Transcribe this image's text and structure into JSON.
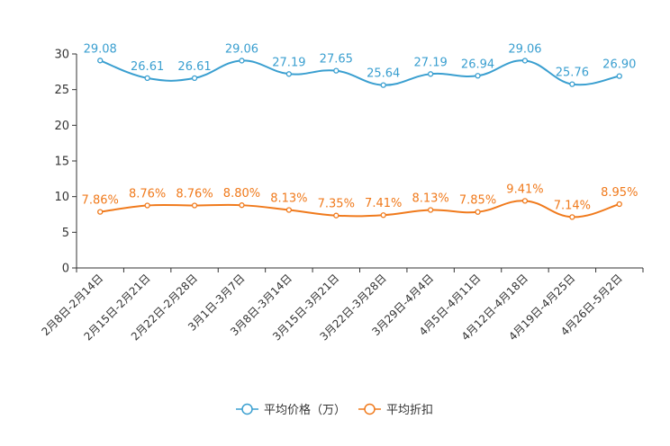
{
  "chart_data": {
    "type": "line",
    "title": "",
    "xlabel": "",
    "ylabel": "",
    "ylim": [
      0,
      30
    ],
    "yticks": [
      0,
      5,
      10,
      15,
      20,
      25,
      30
    ],
    "categories": [
      "2月8日-2月14日",
      "2月15日-2月21日",
      "2月22日-2月28日",
      "3月1日-3月7日",
      "3月8日-3月14日",
      "3月15日-3月21日",
      "3月22日-3月28日",
      "3月29日-4月4日",
      "4月5日-4月11日",
      "4月12日-4月18日",
      "4月19日-4月25日",
      "4月26日-5月2日"
    ],
    "series": [
      {
        "name": "平均价格（万）",
        "color": "#3a9fd0",
        "values": [
          29.08,
          26.61,
          26.61,
          29.06,
          27.19,
          27.65,
          25.64,
          27.19,
          26.94,
          29.06,
          25.76,
          26.9
        ],
        "labels": [
          "29.08",
          "26.61",
          "26.61",
          "29.06",
          "27.19",
          "27.65",
          "25.64",
          "27.19",
          "26.94",
          "29.06",
          "25.76",
          "26.90"
        ]
      },
      {
        "name": "平均折扣",
        "color": "#f07a1c",
        "values": [
          7.86,
          8.76,
          8.76,
          8.8,
          8.13,
          7.35,
          7.41,
          8.13,
          7.85,
          9.41,
          7.14,
          8.95
        ],
        "labels": [
          "7.86%",
          "8.76%",
          "8.76%",
          "8.80%",
          "8.13%",
          "7.35%",
          "7.41%",
          "8.13%",
          "7.85%",
          "9.41%",
          "7.14%",
          "8.95%"
        ]
      }
    ],
    "legend_position": "bottom-center",
    "grid": false
  }
}
